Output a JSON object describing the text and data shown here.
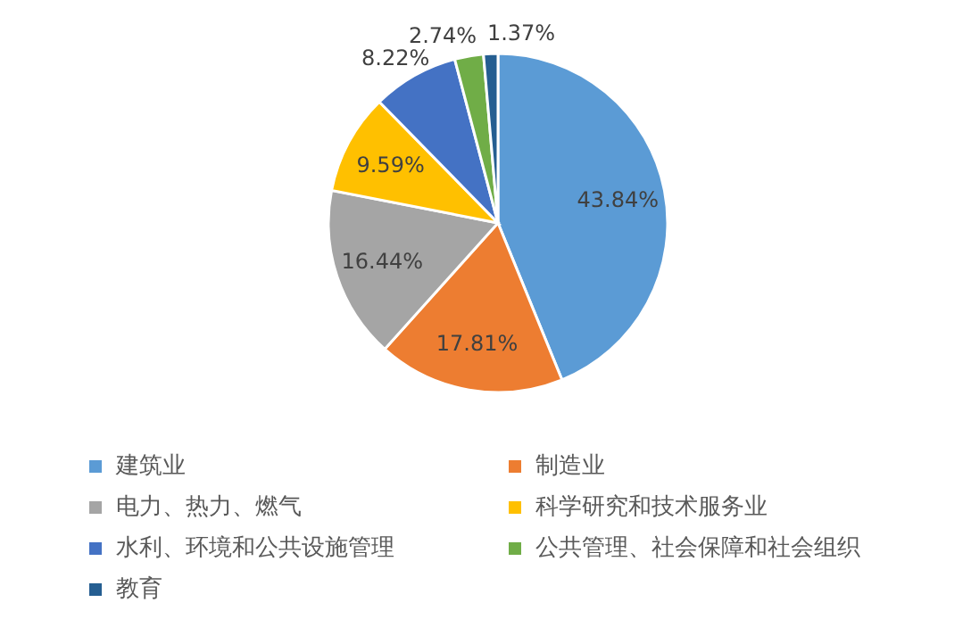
{
  "chart_data": {
    "type": "pie",
    "categories": [
      "建筑业",
      "制造业",
      "电力、热力、燃气",
      "科学研究和技术服务业",
      "水利、环境和公共设施管理",
      "公共管理、社会保障和社会组织",
      "教育"
    ],
    "values": [
      43.84,
      17.81,
      16.44,
      9.59,
      8.22,
      2.74,
      1.37
    ],
    "value_labels": [
      "43.84%",
      "17.81%",
      "16.44%",
      "9.59%",
      "8.22%",
      "2.74%",
      "1.37%"
    ],
    "colors": [
      "#5b9bd5",
      "#ed7d31",
      "#a5a5a5",
      "#ffc000",
      "#4472c4",
      "#70ad47",
      "#255e91"
    ],
    "legend": "bottom"
  }
}
